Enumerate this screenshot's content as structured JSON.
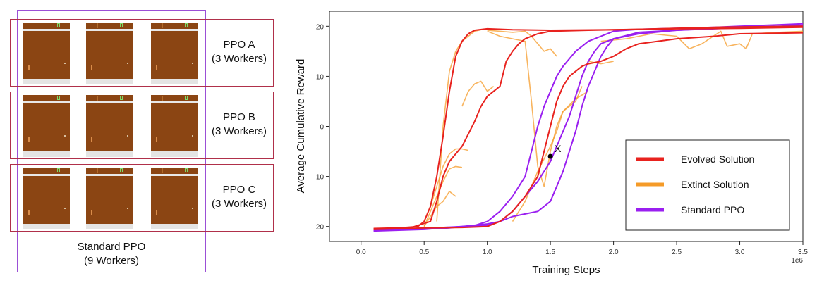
{
  "left_panel": {
    "groups": [
      {
        "name": "PPO A",
        "workers": "(3 Workers)"
      },
      {
        "name": "PPO B",
        "workers": "(3 Workers)"
      },
      {
        "name": "PPO C",
        "workers": "(3 Workers)"
      }
    ],
    "standard": {
      "name": "Standard PPO",
      "workers": "(9 Workers)"
    },
    "colors": {
      "group_border": "#b0304a",
      "standard_border": "#9b4fd6",
      "game_field": "#8b4513"
    }
  },
  "chart_data": {
    "type": "line",
    "xlabel": "Training Steps",
    "ylabel": "Average Cumulative Reward",
    "x_multiplier_label": "1e6",
    "xlim": [
      -0.25,
      3.5
    ],
    "ylim": [
      -23,
      23
    ],
    "xticks": [
      0.0,
      0.5,
      1.0,
      1.5,
      2.0,
      2.5,
      3.0,
      3.5
    ],
    "xtick_labels": [
      "0.0",
      "0.5",
      "1.0",
      "1.5",
      "2.0",
      "2.5",
      "3.0",
      "3.5"
    ],
    "yticks": [
      -20,
      -10,
      0,
      10,
      20
    ],
    "ytick_labels": [
      "-20",
      "-10",
      "0",
      "10",
      "20"
    ],
    "grid": false,
    "legend_position": "bottom-right",
    "legend": [
      {
        "label": "Evolved Solution",
        "color": "#e8221e"
      },
      {
        "label": "Extinct Solution",
        "color": "#f59b28"
      },
      {
        "label": "Standard PPO",
        "color": "#9a1ff0"
      }
    ],
    "marker": {
      "label": "X",
      "x": 1.5,
      "y": -6
    },
    "series": [
      {
        "group": "evolved",
        "color": "#e8221e",
        "points": [
          [
            0.1,
            -20.5
          ],
          [
            0.3,
            -20.3
          ],
          [
            0.45,
            -20
          ],
          [
            0.5,
            -19
          ],
          [
            0.55,
            -16
          ],
          [
            0.6,
            -10
          ],
          [
            0.65,
            -2
          ],
          [
            0.7,
            7
          ],
          [
            0.75,
            14
          ],
          [
            0.8,
            17
          ],
          [
            0.85,
            18.5
          ],
          [
            0.9,
            19.2
          ],
          [
            1.0,
            19.5
          ],
          [
            1.2,
            19.3
          ],
          [
            1.5,
            19.2
          ],
          [
            2.0,
            19.3
          ],
          [
            2.5,
            19.5
          ],
          [
            3.0,
            19.6
          ],
          [
            3.5,
            19.8
          ]
        ]
      },
      {
        "group": "evolved",
        "color": "#e8221e",
        "points": [
          [
            0.1,
            -20.4
          ],
          [
            0.4,
            -20.2
          ],
          [
            0.55,
            -19
          ],
          [
            0.6,
            -15
          ],
          [
            0.65,
            -10
          ],
          [
            0.7,
            -7
          ],
          [
            0.8,
            -4
          ],
          [
            0.9,
            1
          ],
          [
            0.95,
            4
          ],
          [
            1.0,
            6
          ],
          [
            1.1,
            8
          ],
          [
            1.15,
            13
          ],
          [
            1.2,
            15
          ],
          [
            1.25,
            16.5
          ],
          [
            1.3,
            17.5
          ],
          [
            1.4,
            18.5
          ],
          [
            1.5,
            19
          ],
          [
            1.8,
            19.2
          ],
          [
            2.2,
            19.4
          ],
          [
            2.8,
            19.8
          ],
          [
            3.5,
            20
          ]
        ]
      },
      {
        "group": "evolved",
        "color": "#e8221e",
        "points": [
          [
            0.1,
            -20.6
          ],
          [
            0.5,
            -20.3
          ],
          [
            0.8,
            -20.2
          ],
          [
            1.0,
            -20
          ],
          [
            1.1,
            -19
          ],
          [
            1.2,
            -17
          ],
          [
            1.3,
            -14
          ],
          [
            1.4,
            -10
          ],
          [
            1.45,
            -5
          ],
          [
            1.5,
            0
          ],
          [
            1.55,
            5
          ],
          [
            1.6,
            8
          ],
          [
            1.65,
            10
          ],
          [
            1.7,
            11
          ],
          [
            1.75,
            12
          ],
          [
            1.8,
            12.5
          ],
          [
            1.9,
            13
          ],
          [
            2.0,
            14
          ],
          [
            2.1,
            15.5
          ],
          [
            2.2,
            16.5
          ],
          [
            2.5,
            17.5
          ],
          [
            2.8,
            18
          ],
          [
            3.0,
            18.5
          ],
          [
            3.5,
            18.7
          ]
        ]
      },
      {
        "group": "extinct",
        "color": "#f59b28",
        "points": [
          [
            0.5,
            -19
          ],
          [
            0.55,
            -16
          ],
          [
            0.6,
            -12
          ],
          [
            0.65,
            -8
          ],
          [
            0.7,
            -5.5
          ],
          [
            0.75,
            -4.5
          ],
          [
            0.8,
            -4.5
          ],
          [
            0.85,
            -4.8
          ]
        ]
      },
      {
        "group": "extinct",
        "color": "#f59b28",
        "points": [
          [
            0.5,
            -20
          ],
          [
            0.55,
            -17
          ],
          [
            0.6,
            -14
          ],
          [
            0.65,
            -11
          ],
          [
            0.7,
            -8.5
          ],
          [
            0.75,
            -8
          ],
          [
            0.8,
            -8.2
          ]
        ]
      },
      {
        "group": "extinct",
        "color": "#f59b28",
        "points": [
          [
            0.5,
            -20
          ],
          [
            0.55,
            -18
          ],
          [
            0.6,
            -16
          ],
          [
            0.65,
            -15
          ],
          [
            0.7,
            -13
          ],
          [
            0.75,
            -14
          ]
        ]
      },
      {
        "group": "extinct",
        "color": "#f59b28",
        "points": [
          [
            0.6,
            -19
          ],
          [
            0.65,
            0
          ],
          [
            0.7,
            11
          ],
          [
            0.75,
            15
          ],
          [
            0.8,
            17
          ],
          [
            0.85,
            18
          ],
          [
            0.9,
            19
          ],
          [
            0.95,
            19.3
          ]
        ]
      },
      {
        "group": "extinct",
        "color": "#f59b28",
        "points": [
          [
            0.8,
            4
          ],
          [
            0.85,
            7
          ],
          [
            0.9,
            8.5
          ],
          [
            0.95,
            9
          ],
          [
            1.0,
            7
          ],
          [
            1.05,
            8
          ]
        ]
      },
      {
        "group": "extinct",
        "color": "#f59b28",
        "points": [
          [
            1.0,
            19
          ],
          [
            1.1,
            18
          ],
          [
            1.2,
            17.5
          ],
          [
            1.3,
            17
          ],
          [
            1.35,
            5
          ],
          [
            1.4,
            -8
          ],
          [
            1.45,
            -12
          ],
          [
            1.5,
            -5
          ],
          [
            1.55,
            0
          ],
          [
            1.6,
            3
          ],
          [
            1.7,
            5
          ],
          [
            1.75,
            8
          ]
        ]
      },
      {
        "group": "extinct",
        "color": "#f59b28",
        "points": [
          [
            1.0,
            19.2
          ],
          [
            1.1,
            19
          ],
          [
            1.2,
            18.8
          ],
          [
            1.3,
            19
          ],
          [
            1.35,
            18
          ],
          [
            1.45,
            15
          ],
          [
            1.5,
            15.5
          ],
          [
            1.55,
            14
          ]
        ]
      },
      {
        "group": "extinct",
        "color": "#f59b28",
        "points": [
          [
            1.2,
            -19
          ],
          [
            1.3,
            -15
          ],
          [
            1.4,
            -9
          ],
          [
            1.5,
            -4
          ],
          [
            1.55,
            -1
          ],
          [
            1.6,
            3
          ],
          [
            1.7,
            5.5
          ],
          [
            1.8,
            7
          ]
        ]
      },
      {
        "group": "extinct",
        "color": "#f59b28",
        "points": [
          [
            1.8,
            13
          ],
          [
            1.9,
            12.5
          ],
          [
            2.0,
            13
          ]
        ]
      },
      {
        "group": "extinct",
        "color": "#f59b28",
        "points": [
          [
            1.9,
            17
          ],
          [
            2.1,
            17.5
          ],
          [
            2.3,
            18.5
          ],
          [
            2.5,
            18
          ],
          [
            2.6,
            15.5
          ],
          [
            2.7,
            16.5
          ],
          [
            2.85,
            19
          ],
          [
            2.9,
            16
          ],
          [
            3.0,
            16.5
          ],
          [
            3.05,
            15.5
          ],
          [
            3.1,
            18.5
          ],
          [
            3.3,
            18.8
          ],
          [
            3.5,
            19
          ]
        ]
      },
      {
        "group": "standard",
        "color": "#9a1ff0",
        "points": [
          [
            0.1,
            -20.8
          ],
          [
            0.5,
            -20.5
          ],
          [
            0.7,
            -20.3
          ],
          [
            0.9,
            -19.8
          ],
          [
            1.0,
            -19
          ],
          [
            1.1,
            -17
          ],
          [
            1.2,
            -14
          ],
          [
            1.3,
            -10
          ],
          [
            1.35,
            -5
          ],
          [
            1.4,
            0
          ],
          [
            1.45,
            4
          ],
          [
            1.5,
            7
          ],
          [
            1.55,
            10
          ],
          [
            1.6,
            12
          ],
          [
            1.65,
            13.5
          ],
          [
            1.7,
            15
          ],
          [
            1.75,
            16
          ],
          [
            1.8,
            17
          ],
          [
            1.9,
            18
          ],
          [
            2.0,
            19
          ],
          [
            2.2,
            19.4
          ],
          [
            2.5,
            19.6
          ],
          [
            2.8,
            19.8
          ],
          [
            3.0,
            20
          ],
          [
            3.3,
            20.3
          ],
          [
            3.5,
            20.5
          ]
        ]
      },
      {
        "group": "standard",
        "color": "#9a1ff0",
        "points": [
          [
            0.1,
            -20.8
          ],
          [
            0.5,
            -20.4
          ],
          [
            0.8,
            -20
          ],
          [
            1.0,
            -19.5
          ],
          [
            1.1,
            -19
          ],
          [
            1.2,
            -17
          ],
          [
            1.3,
            -14
          ],
          [
            1.4,
            -11
          ],
          [
            1.5,
            -7
          ],
          [
            1.55,
            -4
          ],
          [
            1.6,
            -1
          ],
          [
            1.65,
            2
          ],
          [
            1.7,
            6
          ],
          [
            1.75,
            10
          ],
          [
            1.8,
            13
          ],
          [
            1.85,
            15
          ],
          [
            1.9,
            16.5
          ],
          [
            2.0,
            17.5
          ],
          [
            2.2,
            18.5
          ],
          [
            2.5,
            19.2
          ],
          [
            2.8,
            19.6
          ],
          [
            3.1,
            19.8
          ],
          [
            3.5,
            20
          ]
        ]
      },
      {
        "group": "standard",
        "color": "#9a1ff0",
        "points": [
          [
            0.1,
            -20.9
          ],
          [
            0.5,
            -20.6
          ],
          [
            0.8,
            -20
          ],
          [
            1.0,
            -19.8
          ],
          [
            1.1,
            -19
          ],
          [
            1.2,
            -18
          ],
          [
            1.3,
            -17.5
          ],
          [
            1.4,
            -17
          ],
          [
            1.5,
            -15
          ],
          [
            1.55,
            -12
          ],
          [
            1.6,
            -9
          ],
          [
            1.65,
            -5
          ],
          [
            1.7,
            -1
          ],
          [
            1.75,
            4
          ],
          [
            1.8,
            8
          ],
          [
            1.85,
            11
          ],
          [
            1.9,
            14
          ],
          [
            1.95,
            16
          ],
          [
            2.0,
            17.5
          ],
          [
            2.2,
            18.8
          ],
          [
            2.5,
            19.2
          ],
          [
            2.8,
            19.5
          ],
          [
            3.1,
            19.8
          ],
          [
            3.5,
            20.2
          ]
        ]
      }
    ]
  }
}
